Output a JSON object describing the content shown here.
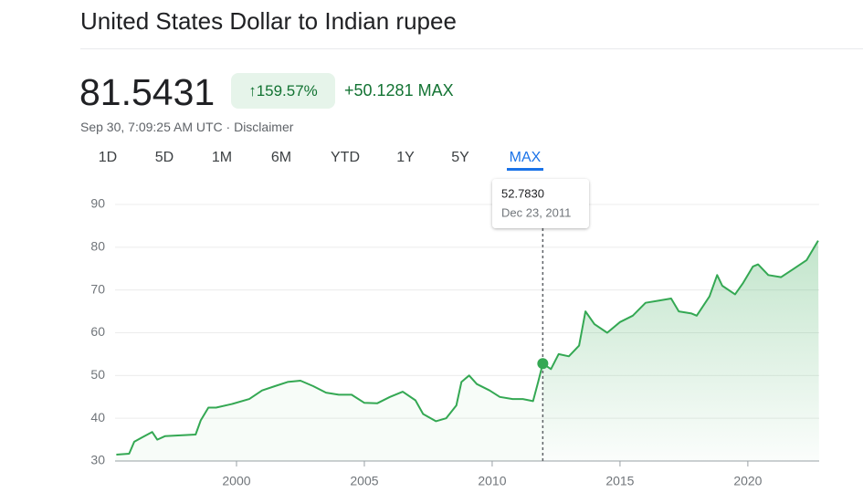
{
  "header": {
    "title": "United States Dollar to Indian rupee",
    "price": "81.5431",
    "change_pct": "159.57%",
    "change_abs": "+50.1281 MAX",
    "timestamp": "Sep 30, 7:09:25 AM UTC · Disclaimer"
  },
  "tabs": [
    "1D",
    "5D",
    "1M",
    "6M",
    "YTD",
    "1Y",
    "5Y",
    "MAX"
  ],
  "chart_data": {
    "type": "area",
    "color": "#34a853",
    "grid": true,
    "x": [
      1995.3,
      1995.8,
      1996.0,
      1996.3,
      1996.7,
      1996.9,
      1997.2,
      1997.8,
      1998.4,
      1998.6,
      1998.9,
      1999.2,
      1999.8,
      2000.5,
      2001.0,
      2001.5,
      2002.0,
      2002.5,
      2003.0,
      2003.5,
      2004.0,
      2004.5,
      2005.0,
      2005.5,
      2006.0,
      2006.5,
      2007.0,
      2007.3,
      2007.8,
      2008.2,
      2008.6,
      2008.8,
      2009.1,
      2009.4,
      2009.9,
      2010.3,
      2010.8,
      2011.2,
      2011.6,
      2011.8,
      2011.98,
      2012.3,
      2012.6,
      2013.0,
      2013.4,
      2013.65,
      2014.0,
      2014.5,
      2015.0,
      2015.5,
      2016.0,
      2016.5,
      2017.0,
      2017.3,
      2017.8,
      2018.0,
      2018.5,
      2018.8,
      2019.0,
      2019.5,
      2019.8,
      2020.2,
      2020.4,
      2020.8,
      2021.3,
      2021.8,
      2022.3,
      2022.75
    ],
    "values": [
      31.5,
      31.7,
      34.5,
      35.5,
      36.8,
      35,
      35.8,
      36,
      36.2,
      39.5,
      42.5,
      42.5,
      43.3,
      44.5,
      46.5,
      47.5,
      48.5,
      48.8,
      47.5,
      46,
      45.5,
      45.5,
      43.6,
      43.5,
      45,
      46.2,
      44.2,
      41,
      39.3,
      40,
      43,
      48.5,
      50,
      48,
      46.5,
      45,
      44.5,
      44.5,
      44,
      48.5,
      52.783,
      51.5,
      55,
      54.5,
      57,
      65,
      62,
      60,
      62.5,
      64,
      67,
      67.5,
      68,
      65,
      64.5,
      64,
      68.5,
      73.5,
      71,
      69,
      71.5,
      75.5,
      76,
      73.5,
      73,
      75,
      77,
      81.5431
    ],
    "xlim": [
      1995.25,
      2022.79
    ],
    "xticks": [
      2000,
      2005,
      2010,
      2015,
      2020
    ],
    "ylim": [
      30,
      90
    ],
    "yticks": [
      30,
      40,
      50,
      60,
      70,
      80,
      90
    ],
    "tooltip": {
      "x": 2011.98,
      "value": 52.783,
      "value_label": "52.7830",
      "date": "Dec 23, 2011"
    }
  }
}
